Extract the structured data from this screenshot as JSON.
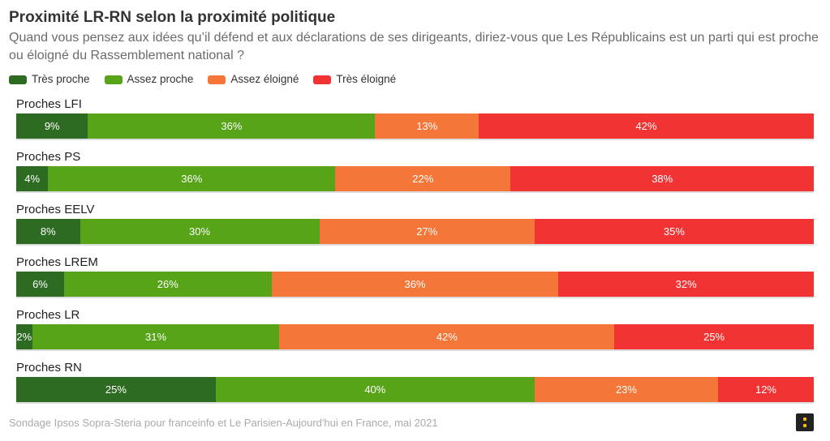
{
  "chart_data": {
    "type": "bar",
    "orientation": "horizontal-stacked-100",
    "title": "Proximité LR-RN selon la proximité politique",
    "subtitle": "Quand vous pensez aux idées qu’il défend et aux déclarations de ses dirigeants, diriez-vous que Les Républicains est un parti qui est proche ou éloigné du Rassemblement national ?",
    "legend_placement": "top-left",
    "categories": [
      "Proches LFI",
      "Proches PS",
      "Proches EELV",
      "Proches LREM",
      "Proches LR",
      "Proches RN"
    ],
    "series": [
      {
        "name": "Très proche",
        "color": "#2e6b22",
        "values": [
          9,
          4,
          8,
          6,
          2,
          25
        ]
      },
      {
        "name": "Assez proche",
        "color": "#57a418",
        "values": [
          36,
          36,
          30,
          26,
          31,
          40
        ]
      },
      {
        "name": "Assez éloigné",
        "color": "#f47638",
        "values": [
          13,
          22,
          27,
          36,
          42,
          23
        ]
      },
      {
        "name": "Très éloigné",
        "color": "#f13333",
        "values": [
          42,
          38,
          35,
          32,
          25,
          12
        ]
      }
    ],
    "source": "Sondage Ipsos Sopra-Steria pour franceinfo et Le Parisien-Aujourd'hui en France, mai 2021"
  }
}
